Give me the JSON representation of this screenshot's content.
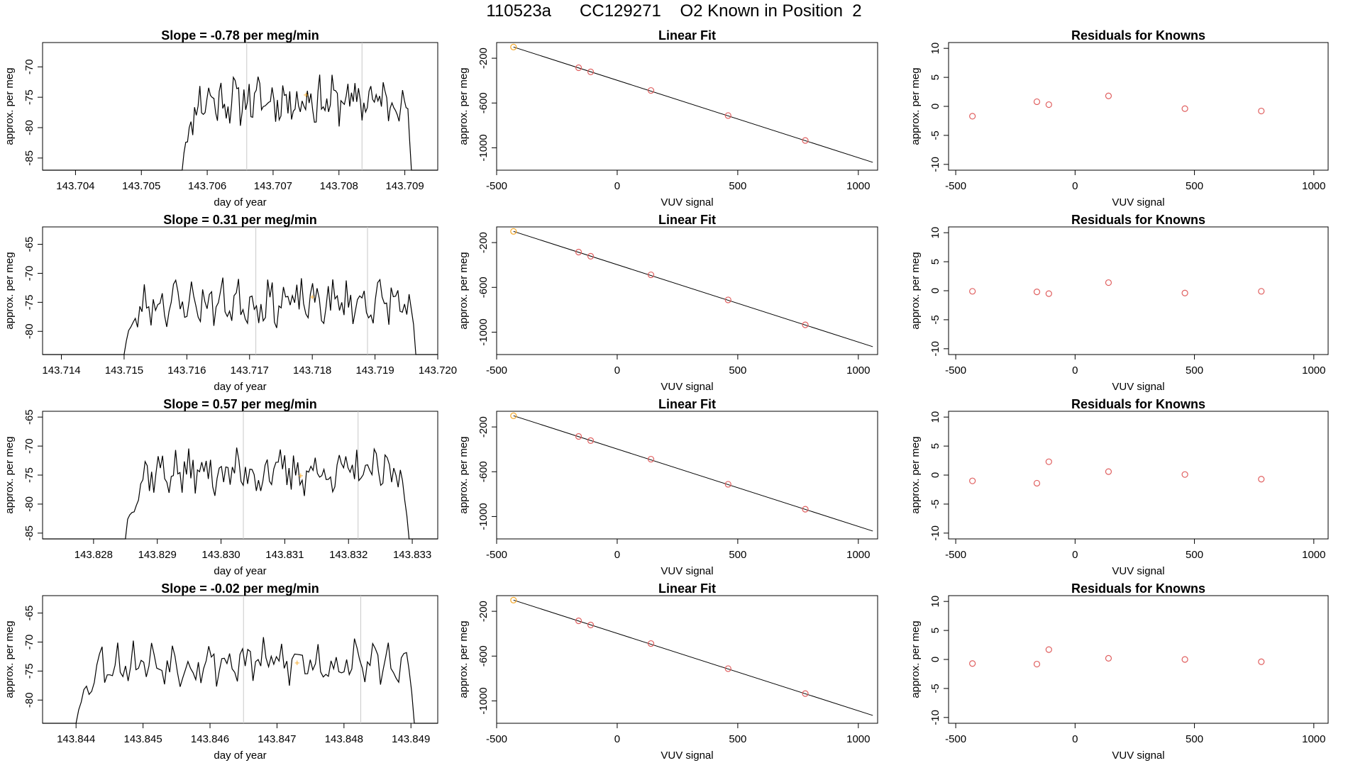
{
  "page_title": "110523a      CC129271    O2 Known in Position  2",
  "colors": {
    "trace": "#000000",
    "marker": "#f5a623",
    "fit_points": "#e06060",
    "vline": "#c8c8c8",
    "fit_line": "#000000",
    "axis": "#000000"
  },
  "rows": [
    {
      "time_panel": {
        "title": "Slope =  -0.78  per meg/min",
        "xlabel": "day of year",
        "ylabel": "approx. per meg",
        "xlim": [
          143.7035,
          143.7095
        ],
        "ylim": [
          -87,
          -66
        ],
        "xticks": [
          "143.704",
          "143.705",
          "143.706",
          "143.707",
          "143.708",
          "143.709"
        ],
        "yticks": [
          "-85",
          "-80",
          "-75",
          "-70"
        ],
        "start": 143.70562,
        "end": 143.7091,
        "level": -75.5,
        "vlines": [
          143.7066,
          143.70835
        ],
        "marker": [
          143.7075,
          -74.5
        ],
        "seed": 11
      },
      "fit_panel": {
        "title": "Linear Fit",
        "xlabel": "VUV signal",
        "ylabel": "approx. per meg",
        "xlim": [
          -500,
          1080
        ],
        "ylim": [
          -1200,
          -60
        ],
        "xticks": [
          "-500",
          "0",
          "500",
          "1000"
        ],
        "yticks": [
          "-200",
          "-600",
          "-1000"
        ],
        "points": [
          [
            -430,
            -100
          ],
          [
            -160,
            -285
          ],
          [
            -110,
            -322
          ],
          [
            140,
            -488
          ],
          [
            460,
            -712
          ],
          [
            780,
            -935
          ]
        ],
        "line": [
          [
            -430,
            -100
          ],
          [
            1060,
            -1130
          ]
        ]
      },
      "resid_panel": {
        "title": "Residuals for Knowns",
        "xlabel": "VUV signal",
        "ylabel": "approx. per meg",
        "xlim": [
          -530,
          1060
        ],
        "ylim": [
          -11,
          11
        ],
        "xticks": [
          "-500",
          "0",
          "500",
          "1000"
        ],
        "yticks": [
          "-10",
          "-5",
          "0",
          "5",
          "10"
        ],
        "points": [
          [
            -430,
            -1.7
          ],
          [
            -160,
            0.8
          ],
          [
            -110,
            0.3
          ],
          [
            140,
            1.8
          ],
          [
            460,
            -0.4
          ],
          [
            780,
            -0.8
          ]
        ]
      }
    },
    {
      "time_panel": {
        "title": "Slope =  0.31  per meg/min",
        "xlabel": "day of year",
        "ylabel": "approx. per meg",
        "xlim": [
          143.7137,
          143.72
        ],
        "ylim": [
          -84,
          -62
        ],
        "xticks": [
          "143.714",
          "143.715",
          "143.716",
          "143.717",
          "143.718",
          "143.719",
          "143.720"
        ],
        "yticks": [
          "-80",
          "-75",
          "-70",
          "-65"
        ],
        "start": 143.715,
        "end": 143.71965,
        "level": -75,
        "vlines": [
          143.7171,
          143.71888
        ],
        "marker": [
          143.718,
          -74
        ],
        "seed": 23
      },
      "fit_panel": {
        "title": "Linear Fit",
        "xlabel": "VUV signal",
        "ylabel": "approx. per meg",
        "xlim": [
          -500,
          1080
        ],
        "ylim": [
          -1200,
          -60
        ],
        "xticks": [
          "-500",
          "0",
          "500",
          "1000"
        ],
        "yticks": [
          "-200",
          "-600",
          "-1000"
        ],
        "points": [
          [
            -430,
            -100
          ],
          [
            -160,
            -285
          ],
          [
            -110,
            -322
          ],
          [
            140,
            -488
          ],
          [
            460,
            -712
          ],
          [
            780,
            -935
          ]
        ],
        "line": [
          [
            -430,
            -100
          ],
          [
            1060,
            -1130
          ]
        ]
      },
      "resid_panel": {
        "title": "Residuals for Knowns",
        "xlabel": "VUV signal",
        "ylabel": "approx. per meg",
        "xlim": [
          -530,
          1060
        ],
        "ylim": [
          -11,
          11
        ],
        "xticks": [
          "-500",
          "0",
          "500",
          "1000"
        ],
        "yticks": [
          "-10",
          "-5",
          "0",
          "5",
          "10"
        ],
        "points": [
          [
            -430,
            -0.1
          ],
          [
            -160,
            -0.2
          ],
          [
            -110,
            -0.5
          ],
          [
            140,
            1.4
          ],
          [
            460,
            -0.4
          ],
          [
            780,
            -0.1
          ]
        ]
      }
    },
    {
      "time_panel": {
        "title": "Slope =  0.57  per meg/min",
        "xlabel": "day of year",
        "ylabel": "approx. per meg",
        "xlim": [
          143.8272,
          143.8334
        ],
        "ylim": [
          -86,
          -64
        ],
        "xticks": [
          "143.828",
          "143.829",
          "143.830",
          "143.831",
          "143.832",
          "143.833"
        ],
        "yticks": [
          "-85",
          "-80",
          "-75",
          "-70",
          "-65"
        ],
        "start": 143.8285,
        "end": 143.83295,
        "level": -74.5,
        "vlines": [
          143.83035,
          143.83215
        ],
        "marker": [
          143.83125,
          -75
        ],
        "seed": 37
      },
      "fit_panel": {
        "title": "Linear Fit",
        "xlabel": "VUV signal",
        "ylabel": "approx. per meg",
        "xlim": [
          -500,
          1080
        ],
        "ylim": [
          -1200,
          -60
        ],
        "xticks": [
          "-500",
          "0",
          "500",
          "1000"
        ],
        "yticks": [
          "-200",
          "-600",
          "-1000"
        ],
        "points": [
          [
            -430,
            -100
          ],
          [
            -160,
            -285
          ],
          [
            -110,
            -322
          ],
          [
            140,
            -488
          ],
          [
            460,
            -712
          ],
          [
            780,
            -935
          ]
        ],
        "line": [
          [
            -430,
            -100
          ],
          [
            1060,
            -1130
          ]
        ]
      },
      "resid_panel": {
        "title": "Residuals for Knowns",
        "xlabel": "VUV signal",
        "ylabel": "approx. per meg",
        "xlim": [
          -530,
          1060
        ],
        "ylim": [
          -11,
          11
        ],
        "xticks": [
          "-500",
          "0",
          "500",
          "1000"
        ],
        "yticks": [
          "-10",
          "-5",
          "0",
          "5",
          "10"
        ],
        "points": [
          [
            -430,
            -1.0
          ],
          [
            -160,
            -1.4
          ],
          [
            -110,
            2.3
          ],
          [
            140,
            0.6
          ],
          [
            460,
            0.1
          ],
          [
            780,
            -0.7
          ]
        ]
      }
    },
    {
      "time_panel": {
        "title": "Slope =  -0.02  per meg/min",
        "xlabel": "day of year",
        "ylabel": "approx. per meg",
        "xlim": [
          143.8435,
          143.8494
        ],
        "ylim": [
          -84,
          -62
        ],
        "xticks": [
          "143.844",
          "143.845",
          "143.846",
          "143.847",
          "143.848",
          "143.849"
        ],
        "yticks": [
          "-80",
          "-75",
          "-70",
          "-65"
        ],
        "start": 143.844,
        "end": 143.84905,
        "level": -73.5,
        "vlines": [
          143.8465,
          143.84825
        ],
        "marker": [
          143.8473,
          -73.5
        ],
        "seed": 53
      },
      "fit_panel": {
        "title": "Linear Fit",
        "xlabel": "VUV signal",
        "ylabel": "approx. per meg",
        "xlim": [
          -500,
          1080
        ],
        "ylim": [
          -1200,
          -60
        ],
        "xticks": [
          "-500",
          "0",
          "500",
          "1000"
        ],
        "yticks": [
          "-200",
          "-600",
          "-1000"
        ],
        "points": [
          [
            -430,
            -100
          ],
          [
            -160,
            -285
          ],
          [
            -110,
            -322
          ],
          [
            140,
            -488
          ],
          [
            460,
            -712
          ],
          [
            780,
            -935
          ]
        ],
        "line": [
          [
            -430,
            -100
          ],
          [
            1060,
            -1130
          ]
        ]
      },
      "resid_panel": {
        "title": "Residuals for Knowns",
        "xlabel": "VUV signal",
        "ylabel": "approx. per meg",
        "xlim": [
          -530,
          1060
        ],
        "ylim": [
          -11,
          11
        ],
        "xticks": [
          "-500",
          "0",
          "500",
          "1000"
        ],
        "yticks": [
          "-10",
          "-5",
          "0",
          "5",
          "10"
        ],
        "points": [
          [
            -430,
            -0.7
          ],
          [
            -160,
            -0.8
          ],
          [
            -110,
            1.7
          ],
          [
            140,
            0.2
          ],
          [
            460,
            0.0
          ],
          [
            780,
            -0.4
          ]
        ]
      }
    }
  ],
  "chart_data": [
    {
      "type": "line",
      "title": "Slope =  -0.78  per meg/min",
      "xlabel": "day of year",
      "ylabel": "approx. per meg",
      "xlim": [
        143.7035,
        143.7095
      ],
      "ylim": [
        -87,
        -66
      ]
    },
    {
      "type": "scatter",
      "title": "Linear Fit",
      "xlabel": "VUV signal",
      "ylabel": "approx. per meg",
      "x": [
        -430,
        -160,
        -110,
        140,
        460,
        780
      ],
      "y": [
        -100,
        -285,
        -322,
        -488,
        -712,
        -935
      ]
    },
    {
      "type": "scatter",
      "title": "Residuals for Knowns",
      "xlabel": "VUV signal",
      "ylabel": "approx. per meg",
      "x": [
        -430,
        -160,
        -110,
        140,
        460,
        780
      ],
      "y": [
        -1.7,
        0.8,
        0.3,
        1.8,
        -0.4,
        -0.8
      ]
    },
    {
      "type": "line",
      "title": "Slope =  0.31  per meg/min",
      "xlabel": "day of year",
      "ylabel": "approx. per meg",
      "xlim": [
        143.7137,
        143.72
      ],
      "ylim": [
        -84,
        -62
      ]
    },
    {
      "type": "scatter",
      "title": "Linear Fit",
      "xlabel": "VUV signal",
      "ylabel": "approx. per meg",
      "x": [
        -430,
        -160,
        -110,
        140,
        460,
        780
      ],
      "y": [
        -100,
        -285,
        -322,
        -488,
        -712,
        -935
      ]
    },
    {
      "type": "scatter",
      "title": "Residuals for Knowns",
      "xlabel": "VUV signal",
      "ylabel": "approx. per meg",
      "x": [
        -430,
        -160,
        -110,
        140,
        460,
        780
      ],
      "y": [
        -0.1,
        -0.2,
        -0.5,
        1.4,
        -0.4,
        -0.1
      ]
    },
    {
      "type": "line",
      "title": "Slope =  0.57  per meg/min",
      "xlabel": "day of year",
      "ylabel": "approx. per meg",
      "xlim": [
        143.8272,
        143.8334
      ],
      "ylim": [
        -86,
        -64
      ]
    },
    {
      "type": "scatter",
      "title": "Linear Fit",
      "xlabel": "VUV signal",
      "ylabel": "approx. per meg",
      "x": [
        -430,
        -160,
        -110,
        140,
        460,
        780
      ],
      "y": [
        -100,
        -285,
        -322,
        -488,
        -712,
        -935
      ]
    },
    {
      "type": "scatter",
      "title": "Residuals for Knowns",
      "xlabel": "VUV signal",
      "ylabel": "approx. per meg",
      "x": [
        -430,
        -160,
        -110,
        140,
        460,
        780
      ],
      "y": [
        -1.0,
        -1.4,
        2.3,
        0.6,
        0.1,
        -0.7
      ]
    },
    {
      "type": "line",
      "title": "Slope =  -0.02  per meg/min",
      "xlabel": "day of year",
      "ylabel": "approx. per meg",
      "xlim": [
        143.8435,
        143.8494
      ],
      "ylim": [
        -84,
        -62
      ]
    },
    {
      "type": "scatter",
      "title": "Linear Fit",
      "xlabel": "VUV signal",
      "ylabel": "approx. per meg",
      "x": [
        -430,
        -160,
        -110,
        140,
        460,
        780
      ],
      "y": [
        -100,
        -285,
        -322,
        -488,
        -712,
        -935
      ]
    },
    {
      "type": "scatter",
      "title": "Residuals for Knowns",
      "xlabel": "VUV signal",
      "ylabel": "approx. per meg",
      "x": [
        -430,
        -160,
        -110,
        140,
        460,
        780
      ],
      "y": [
        -0.7,
        -0.8,
        1.7,
        0.2,
        0.0,
        -0.4
      ]
    }
  ]
}
